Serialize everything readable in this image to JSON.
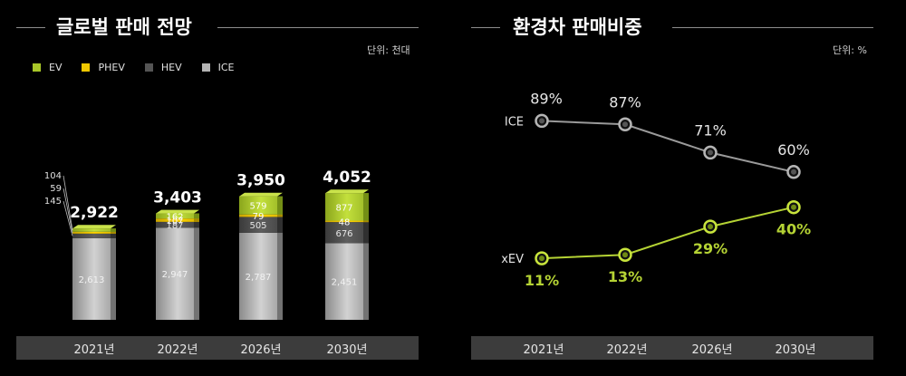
{
  "left_panel": {
    "title": "글로벌 판매 전망",
    "unit": "단위: 천대"
  },
  "right_panel": {
    "title": "환경차 판매비중",
    "unit": "단위: %"
  },
  "legend": [
    {
      "label": "EV",
      "color": "#a8c628"
    },
    {
      "label": "PHEV",
      "color": "#f0c800"
    },
    {
      "label": "HEV",
      "color": "#555555"
    },
    {
      "label": "ICE",
      "color": "#b4b4b4"
    }
  ],
  "chart_data": [
    {
      "type": "bar",
      "stacked": true,
      "title": "글로벌 판매 전망",
      "unit": "단위: 천대",
      "categories": [
        "2021년",
        "2022년",
        "2026년",
        "2030년"
      ],
      "totals": [
        "2,922",
        "3,403",
        "3,950",
        "4,052"
      ],
      "series": [
        {
          "name": "ICE",
          "values": [
            2613,
            2947,
            2787,
            2451
          ],
          "labels": [
            "2,613",
            "2,947",
            "2,787",
            "2,451"
          ]
        },
        {
          "name": "HEV",
          "values": [
            145,
            187,
            505,
            676
          ],
          "labels": [
            "145",
            "187",
            "505",
            "676"
          ]
        },
        {
          "name": "PHEV",
          "values": [
            59,
            107,
            79,
            48
          ],
          "labels": [
            "59",
            "107",
            "79",
            "48"
          ]
        },
        {
          "name": "EV",
          "values": [
            104,
            162,
            579,
            877
          ],
          "labels": [
            "104",
            "162",
            "579",
            "877"
          ]
        }
      ]
    },
    {
      "type": "line",
      "title": "환경차 판매비중",
      "unit": "단위: %",
      "categories": [
        "2021년",
        "2022년",
        "2026년",
        "2030년"
      ],
      "ylim": [
        0,
        100
      ],
      "series": [
        {
          "name": "ICE",
          "values": [
            89,
            87,
            71,
            60
          ],
          "labels": [
            "89%",
            "87%",
            "71%",
            "60%"
          ],
          "color": "#9a9a9a"
        },
        {
          "name": "xEV",
          "values": [
            11,
            13,
            29,
            40
          ],
          "labels": [
            "11%",
            "13%",
            "29%",
            "40%"
          ],
          "color": "#b5d334"
        }
      ]
    }
  ]
}
